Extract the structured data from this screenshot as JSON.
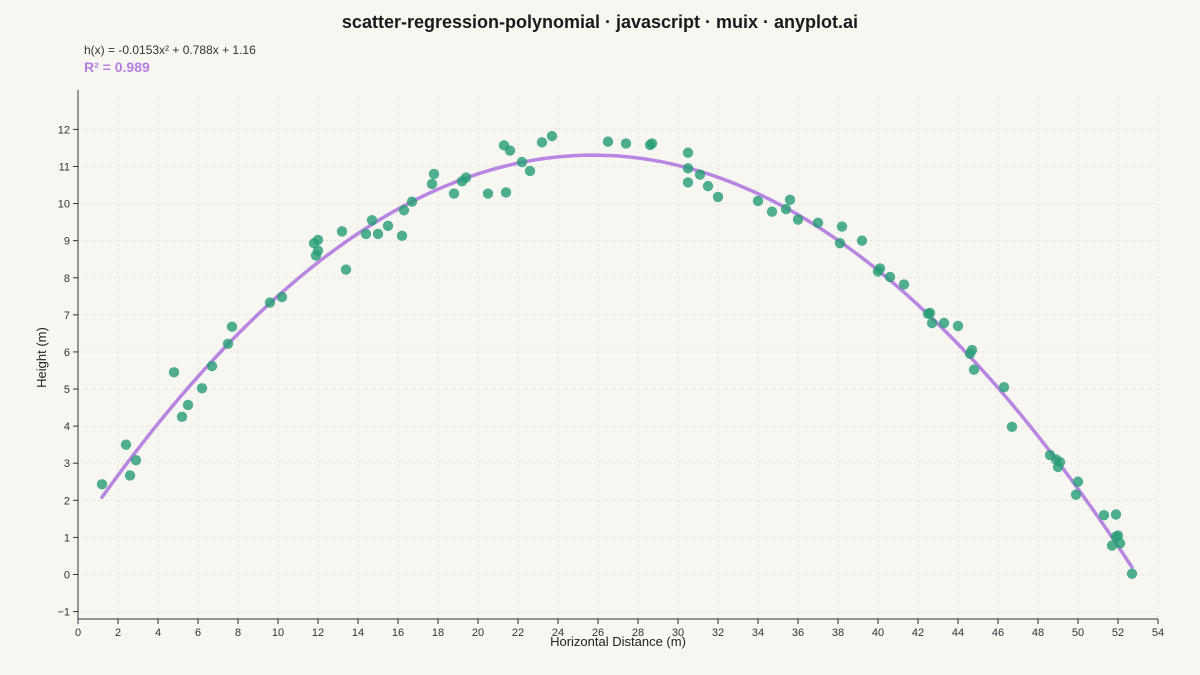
{
  "page": {
    "title": "scatter-regression-polynomial · javascript · muix · anyplot.ai",
    "equation": "h(x) = -0.0153x² + 0.788x + 1.16",
    "r_squared": "R² = 0.989"
  },
  "colors": {
    "background": "#f8f6f0",
    "point": "#2a9d76",
    "fit_line": "#b57ee0",
    "grid": "#e6e3dc",
    "axis": "#333333"
  },
  "chart_data": {
    "type": "scatter",
    "title": "scatter-regression-polynomial · javascript · muix · anyplot.ai",
    "xlabel": "Horizontal Distance (m)",
    "ylabel": "Height (m)",
    "xlim": [
      0,
      54
    ],
    "ylim": [
      -1.2,
      12.9
    ],
    "x_ticks": [
      0,
      2,
      4,
      6,
      8,
      10,
      12,
      14,
      16,
      18,
      20,
      22,
      24,
      26,
      28,
      30,
      32,
      34,
      36,
      38,
      40,
      42,
      44,
      46,
      48,
      50,
      52,
      54
    ],
    "y_ticks": [
      -1,
      0,
      1,
      2,
      3,
      4,
      5,
      6,
      7,
      8,
      9,
      10,
      11,
      12
    ],
    "y_tick_labels": [
      "−1",
      "0",
      "1",
      "2",
      "3",
      "4",
      "5",
      "6",
      "7",
      "8",
      "9",
      "10",
      "11",
      "12"
    ],
    "grid": true,
    "fit": {
      "type": "polynomial",
      "degree": 2,
      "coefficients": [
        -0.0153,
        0.788,
        1.16
      ],
      "x_range": [
        1.2,
        52.7
      ]
    },
    "series": [
      {
        "points": [
          [
            1.2,
            2.43
          ],
          [
            2.4,
            3.5
          ],
          [
            2.6,
            2.67
          ],
          [
            2.9,
            3.08
          ],
          [
            4.8,
            5.45
          ],
          [
            5.2,
            4.25
          ],
          [
            5.5,
            4.57
          ],
          [
            6.2,
            5.02
          ],
          [
            6.7,
            5.62
          ],
          [
            7.5,
            6.22
          ],
          [
            7.7,
            6.68
          ],
          [
            9.6,
            7.33
          ],
          [
            10.2,
            7.48
          ],
          [
            11.8,
            8.93
          ],
          [
            11.9,
            8.6
          ],
          [
            12.0,
            8.73
          ],
          [
            12.0,
            9.02
          ],
          [
            13.2,
            9.25
          ],
          [
            13.4,
            8.22
          ],
          [
            14.4,
            9.18
          ],
          [
            14.7,
            9.55
          ],
          [
            15.0,
            9.18
          ],
          [
            15.5,
            9.4
          ],
          [
            16.2,
            9.13
          ],
          [
            16.3,
            9.82
          ],
          [
            16.7,
            10.05
          ],
          [
            17.7,
            10.53
          ],
          [
            17.8,
            10.8
          ],
          [
            18.8,
            10.27
          ],
          [
            19.2,
            10.6
          ],
          [
            19.4,
            10.7
          ],
          [
            20.5,
            10.27
          ],
          [
            21.3,
            11.57
          ],
          [
            21.4,
            10.3
          ],
          [
            21.6,
            11.43
          ],
          [
            22.2,
            11.12
          ],
          [
            22.6,
            10.88
          ],
          [
            23.2,
            11.65
          ],
          [
            23.7,
            11.82
          ],
          [
            26.5,
            11.67
          ],
          [
            27.4,
            11.62
          ],
          [
            28.6,
            11.58
          ],
          [
            28.7,
            11.62
          ],
          [
            30.5,
            11.37
          ],
          [
            30.5,
            10.95
          ],
          [
            30.5,
            10.57
          ],
          [
            31.1,
            10.78
          ],
          [
            31.5,
            10.47
          ],
          [
            32.0,
            10.18
          ],
          [
            34.0,
            10.07
          ],
          [
            34.7,
            9.78
          ],
          [
            35.4,
            9.85
          ],
          [
            35.6,
            10.1
          ],
          [
            36.0,
            9.57
          ],
          [
            37.0,
            9.48
          ],
          [
            38.1,
            8.93
          ],
          [
            38.2,
            9.38
          ],
          [
            39.2,
            9.0
          ],
          [
            40.0,
            8.17
          ],
          [
            40.1,
            8.25
          ],
          [
            40.6,
            8.02
          ],
          [
            41.3,
            7.82
          ],
          [
            42.5,
            7.03
          ],
          [
            42.6,
            7.05
          ],
          [
            42.7,
            6.78
          ],
          [
            43.3,
            6.78
          ],
          [
            44.0,
            6.7
          ],
          [
            44.6,
            5.95
          ],
          [
            44.7,
            6.05
          ],
          [
            44.8,
            5.52
          ],
          [
            46.3,
            5.05
          ],
          [
            46.7,
            3.98
          ],
          [
            48.6,
            3.22
          ],
          [
            48.9,
            3.1
          ],
          [
            49.0,
            2.9
          ],
          [
            49.1,
            3.03
          ],
          [
            49.9,
            2.15
          ],
          [
            50.0,
            2.5
          ],
          [
            51.3,
            1.6
          ],
          [
            51.7,
            0.78
          ],
          [
            51.9,
            1.62
          ],
          [
            51.9,
            1.02
          ],
          [
            52.0,
            1.05
          ],
          [
            52.1,
            0.84
          ],
          [
            52.7,
            0.02
          ]
        ]
      }
    ]
  }
}
